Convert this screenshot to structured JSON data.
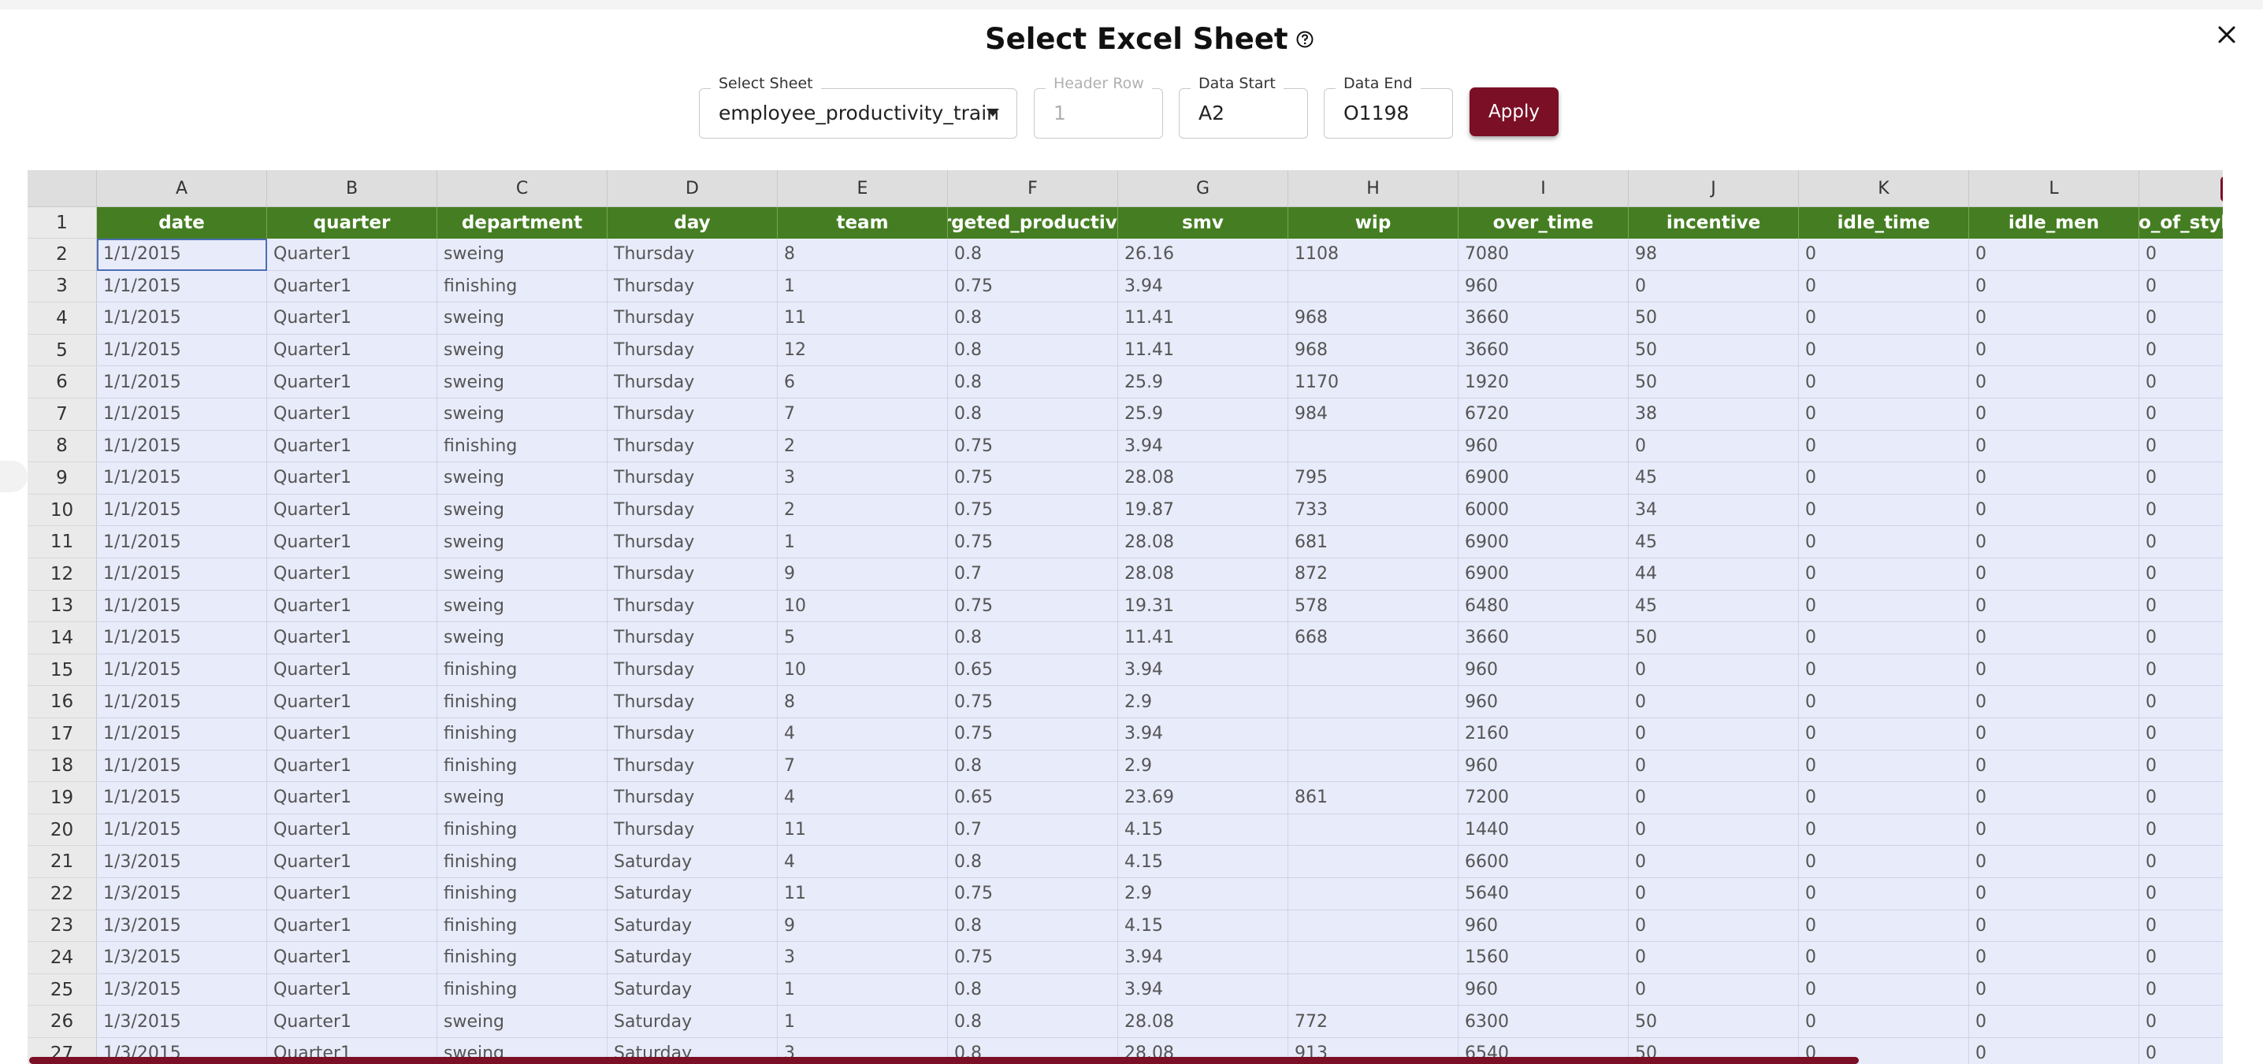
{
  "dialog": {
    "title": "Select Excel Sheet",
    "help_icon": "help-circle-icon",
    "close_icon": "close-icon"
  },
  "controls": {
    "select_sheet": {
      "label": "Select Sheet",
      "value": "employee_productivity_train"
    },
    "header_row": {
      "label": "Header Row",
      "value": "1",
      "disabled": true
    },
    "data_start": {
      "label": "Data Start",
      "value": "A2"
    },
    "data_end": {
      "label": "Data End",
      "value": "O1198"
    },
    "apply_label": "Apply"
  },
  "colors": {
    "accent": "#7a0f26",
    "header_green": "#457e22",
    "cell_bg": "#e8ebf9"
  },
  "grid": {
    "column_letters": [
      "A",
      "B",
      "C",
      "D",
      "E",
      "F",
      "G",
      "H",
      "I",
      "J",
      "K",
      "L",
      ""
    ],
    "header_row_number": "1",
    "headers": [
      "date",
      "quarter",
      "department",
      "day",
      "team",
      "targeted_productivity",
      "smv",
      "wip",
      "over_time",
      "incentive",
      "idle_time",
      "idle_men",
      "no_of_style_change"
    ],
    "rows": [
      {
        "n": "2",
        "c": [
          "1/1/2015",
          "Quarter1",
          "sweing",
          "Thursday",
          "8",
          "0.8",
          "26.16",
          "1108",
          "7080",
          "98",
          "0",
          "0",
          "0"
        ]
      },
      {
        "n": "3",
        "c": [
          "1/1/2015",
          "Quarter1",
          "finishing",
          "Thursday",
          "1",
          "0.75",
          "3.94",
          "",
          "960",
          "0",
          "0",
          "0",
          "0"
        ]
      },
      {
        "n": "4",
        "c": [
          "1/1/2015",
          "Quarter1",
          "sweing",
          "Thursday",
          "11",
          "0.8",
          "11.41",
          "968",
          "3660",
          "50",
          "0",
          "0",
          "0"
        ]
      },
      {
        "n": "5",
        "c": [
          "1/1/2015",
          "Quarter1",
          "sweing",
          "Thursday",
          "12",
          "0.8",
          "11.41",
          "968",
          "3660",
          "50",
          "0",
          "0",
          "0"
        ]
      },
      {
        "n": "6",
        "c": [
          "1/1/2015",
          "Quarter1",
          "sweing",
          "Thursday",
          "6",
          "0.8",
          "25.9",
          "1170",
          "1920",
          "50",
          "0",
          "0",
          "0"
        ]
      },
      {
        "n": "7",
        "c": [
          "1/1/2015",
          "Quarter1",
          "sweing",
          "Thursday",
          "7",
          "0.8",
          "25.9",
          "984",
          "6720",
          "38",
          "0",
          "0",
          "0"
        ]
      },
      {
        "n": "8",
        "c": [
          "1/1/2015",
          "Quarter1",
          "finishing",
          "Thursday",
          "2",
          "0.75",
          "3.94",
          "",
          "960",
          "0",
          "0",
          "0",
          "0"
        ]
      },
      {
        "n": "9",
        "c": [
          "1/1/2015",
          "Quarter1",
          "sweing",
          "Thursday",
          "3",
          "0.75",
          "28.08",
          "795",
          "6900",
          "45",
          "0",
          "0",
          "0"
        ]
      },
      {
        "n": "10",
        "c": [
          "1/1/2015",
          "Quarter1",
          "sweing",
          "Thursday",
          "2",
          "0.75",
          "19.87",
          "733",
          "6000",
          "34",
          "0",
          "0",
          "0"
        ]
      },
      {
        "n": "11",
        "c": [
          "1/1/2015",
          "Quarter1",
          "sweing",
          "Thursday",
          "1",
          "0.75",
          "28.08",
          "681",
          "6900",
          "45",
          "0",
          "0",
          "0"
        ]
      },
      {
        "n": "12",
        "c": [
          "1/1/2015",
          "Quarter1",
          "sweing",
          "Thursday",
          "9",
          "0.7",
          "28.08",
          "872",
          "6900",
          "44",
          "0",
          "0",
          "0"
        ]
      },
      {
        "n": "13",
        "c": [
          "1/1/2015",
          "Quarter1",
          "sweing",
          "Thursday",
          "10",
          "0.75",
          "19.31",
          "578",
          "6480",
          "45",
          "0",
          "0",
          "0"
        ]
      },
      {
        "n": "14",
        "c": [
          "1/1/2015",
          "Quarter1",
          "sweing",
          "Thursday",
          "5",
          "0.8",
          "11.41",
          "668",
          "3660",
          "50",
          "0",
          "0",
          "0"
        ]
      },
      {
        "n": "15",
        "c": [
          "1/1/2015",
          "Quarter1",
          "finishing",
          "Thursday",
          "10",
          "0.65",
          "3.94",
          "",
          "960",
          "0",
          "0",
          "0",
          "0"
        ]
      },
      {
        "n": "16",
        "c": [
          "1/1/2015",
          "Quarter1",
          "finishing",
          "Thursday",
          "8",
          "0.75",
          "2.9",
          "",
          "960",
          "0",
          "0",
          "0",
          "0"
        ]
      },
      {
        "n": "17",
        "c": [
          "1/1/2015",
          "Quarter1",
          "finishing",
          "Thursday",
          "4",
          "0.75",
          "3.94",
          "",
          "2160",
          "0",
          "0",
          "0",
          "0"
        ]
      },
      {
        "n": "18",
        "c": [
          "1/1/2015",
          "Quarter1",
          "finishing",
          "Thursday",
          "7",
          "0.8",
          "2.9",
          "",
          "960",
          "0",
          "0",
          "0",
          "0"
        ]
      },
      {
        "n": "19",
        "c": [
          "1/1/2015",
          "Quarter1",
          "sweing",
          "Thursday",
          "4",
          "0.65",
          "23.69",
          "861",
          "7200",
          "0",
          "0",
          "0",
          "0"
        ]
      },
      {
        "n": "20",
        "c": [
          "1/1/2015",
          "Quarter1",
          "finishing",
          "Thursday",
          "11",
          "0.7",
          "4.15",
          "",
          "1440",
          "0",
          "0",
          "0",
          "0"
        ]
      },
      {
        "n": "21",
        "c": [
          "1/3/2015",
          "Quarter1",
          "finishing",
          "Saturday",
          "4",
          "0.8",
          "4.15",
          "",
          "6600",
          "0",
          "0",
          "0",
          "0"
        ]
      },
      {
        "n": "22",
        "c": [
          "1/3/2015",
          "Quarter1",
          "finishing",
          "Saturday",
          "11",
          "0.75",
          "2.9",
          "",
          "5640",
          "0",
          "0",
          "0",
          "0"
        ]
      },
      {
        "n": "23",
        "c": [
          "1/3/2015",
          "Quarter1",
          "finishing",
          "Saturday",
          "9",
          "0.8",
          "4.15",
          "",
          "960",
          "0",
          "0",
          "0",
          "0"
        ]
      },
      {
        "n": "24",
        "c": [
          "1/3/2015",
          "Quarter1",
          "finishing",
          "Saturday",
          "3",
          "0.75",
          "3.94",
          "",
          "1560",
          "0",
          "0",
          "0",
          "0"
        ]
      },
      {
        "n": "25",
        "c": [
          "1/3/2015",
          "Quarter1",
          "finishing",
          "Saturday",
          "1",
          "0.8",
          "3.94",
          "",
          "960",
          "0",
          "0",
          "0",
          "0"
        ]
      },
      {
        "n": "26",
        "c": [
          "1/3/2015",
          "Quarter1",
          "sweing",
          "Saturday",
          "1",
          "0.8",
          "28.08",
          "772",
          "6300",
          "50",
          "0",
          "0",
          "0"
        ]
      },
      {
        "n": "27",
        "c": [
          "1/3/2015",
          "Quarter1",
          "sweing",
          "Saturday",
          "3",
          "0.8",
          "28.08",
          "913",
          "6540",
          "50",
          "0",
          "0",
          "0"
        ]
      }
    ]
  }
}
